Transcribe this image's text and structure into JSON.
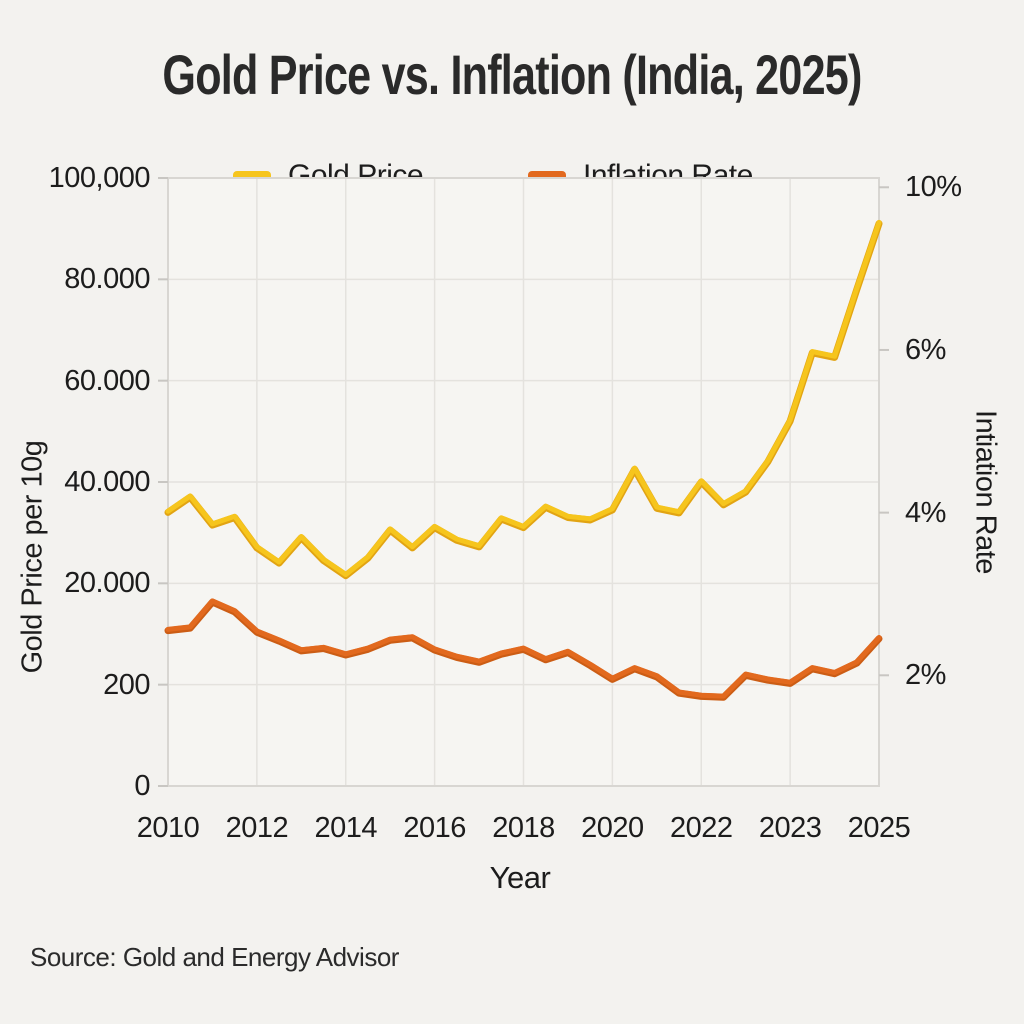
{
  "source_note": "Source: Gold and Energy Advisor",
  "colors": {
    "gold": "#F6C51D",
    "gold_shadow": "#E2A413",
    "inflation": "#E2691E",
    "inflation_shadow": "#CC5D15",
    "background": "#f3f2ef",
    "plot_background": "#f6f5f2",
    "grid": "#e4e2de",
    "plot_border": "#d8d6d2",
    "tick_mark": "#c8c6c2"
  },
  "chart_data": {
    "type": "line",
    "title": "Gold Price vs. Inflation (India, 2025)",
    "xlabel": "Year",
    "ylabel_left": "Gold Price per 10g",
    "ylabel_right": "Intiation Rate",
    "legend_position": "top",
    "grid": true,
    "x_tick_labels": [
      "2010",
      "2012",
      "2014",
      "2016",
      "2018",
      "2020",
      "2022",
      "2023",
      "2025"
    ],
    "x_tick_point_indices": [
      0,
      4,
      8,
      12,
      16,
      20,
      24,
      28,
      32
    ],
    "left_axis": {
      "tick_labels": [
        "0",
        "200",
        "20.000",
        "40.000",
        "60.000",
        "80.000",
        "100,000"
      ],
      "tick_values": [
        0,
        200,
        20000,
        40000,
        60000,
        80000,
        100000
      ]
    },
    "right_axis": {
      "tick_labels": [
        "2%",
        "4%",
        "6%",
        "10%"
      ],
      "tick_values": [
        2,
        4,
        6,
        10
      ]
    },
    "series": [
      {
        "name": "Gold Price",
        "axis": "left",
        "color": "#F6C51D",
        "values": [
          34000,
          37000,
          31500,
          33000,
          27000,
          24000,
          29000,
          24500,
          21500,
          25000,
          30500,
          27000,
          31000,
          28500,
          27200,
          32700,
          31000,
          35000,
          33000,
          32500,
          34500,
          42500,
          34800,
          33900,
          40000,
          35500,
          38000,
          44000,
          52000,
          65500,
          64600,
          78000,
          91000
        ]
      },
      {
        "name": "Inflation Rate",
        "axis": "right",
        "color": "#E2691E",
        "values": [
          2.55,
          2.58,
          2.9,
          2.78,
          2.53,
          2.42,
          2.3,
          2.33,
          2.25,
          2.32,
          2.43,
          2.46,
          2.31,
          2.22,
          2.16,
          2.26,
          2.32,
          2.19,
          2.28,
          2.12,
          1.95,
          2.08,
          1.98,
          1.78,
          1.74,
          1.73,
          2.0,
          1.94,
          1.9,
          2.08,
          2.02,
          2.15,
          2.45
        ]
      }
    ]
  }
}
